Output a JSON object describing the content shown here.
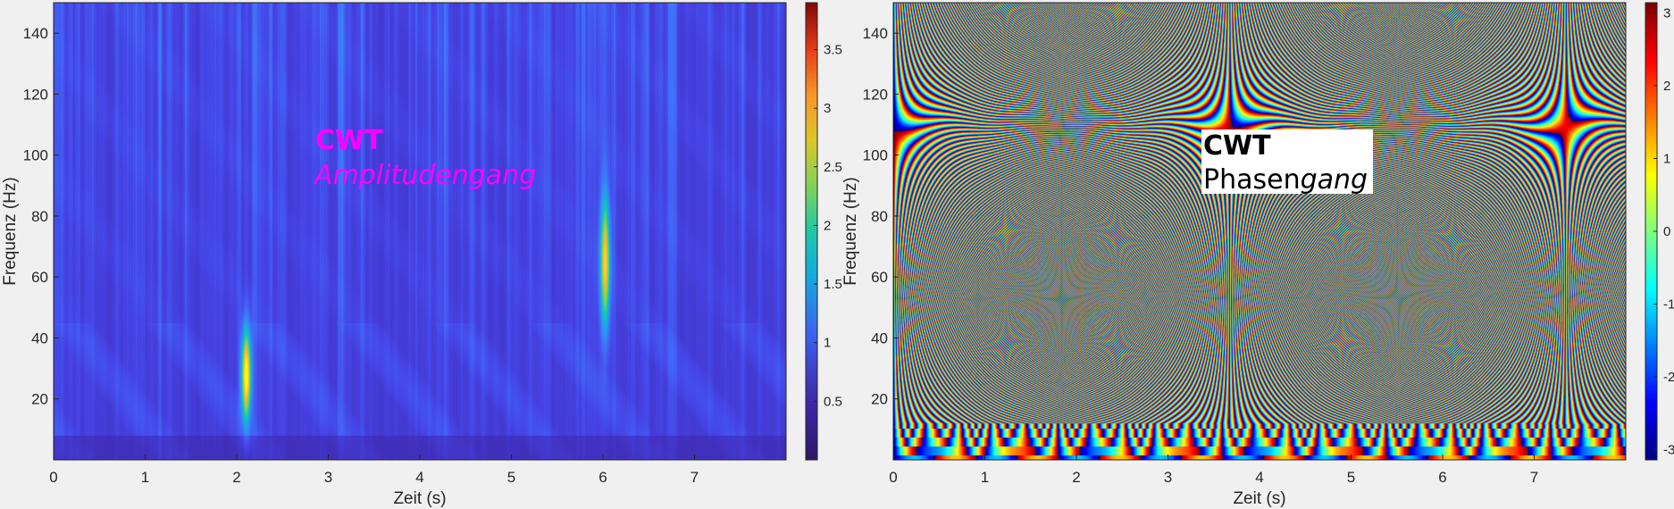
{
  "colors": {
    "background": "#f0f0f0",
    "annotation_amp": "#ff00ff",
    "annotation_phase": "#000000",
    "annotation_box": "#ffffff"
  },
  "chart_data": [
    {
      "type": "heatmap",
      "colormap": "parula",
      "xlabel": "Zeit (s)",
      "ylabel": "Frequenz (Hz)",
      "xlim": [
        0,
        8
      ],
      "ylim": [
        0,
        150
      ],
      "xticks": [
        0,
        1,
        2,
        3,
        4,
        5,
        6,
        7
      ],
      "yticks": [
        20,
        40,
        60,
        80,
        100,
        120,
        140
      ],
      "colorbar": {
        "range": [
          0,
          3.9
        ],
        "ticks": [
          0.5,
          1,
          1.5,
          2,
          2.5,
          3,
          3.5
        ],
        "tick_labels": [
          "0.5",
          "1",
          "1.5",
          "2",
          "2.5",
          "3",
          "3.5"
        ]
      },
      "annotation": {
        "line1": "CWT",
        "line2": "Amplitudengang"
      },
      "features": [
        {
          "time_s": 2.1,
          "freq_hz": 28,
          "amplitude": 3.8,
          "freq_spread_hz": 14
        },
        {
          "time_s": 6.02,
          "freq_hz": 65,
          "amplitude": 3.0,
          "freq_spread_hz": 20
        }
      ],
      "grid": false
    },
    {
      "type": "heatmap",
      "colormap": "jet",
      "xlabel": "Zeit (s)",
      "ylabel": "Frequenz (Hz)",
      "xlim": [
        0,
        8
      ],
      "ylim": [
        0,
        150
      ],
      "xticks": [
        0,
        1,
        2,
        3,
        4,
        5,
        6,
        7
      ],
      "yticks": [
        20,
        40,
        60,
        80,
        100,
        120,
        140
      ],
      "colorbar": {
        "range": [
          -3.14,
          3.14
        ],
        "ticks": [
          -3,
          -2,
          -1,
          0,
          1,
          2,
          3
        ],
        "tick_labels": [
          "-3",
          "-2",
          "-1",
          "0",
          "1",
          "2",
          "3"
        ]
      },
      "annotation": {
        "line1": "CWT",
        "line2_normal": "Phasen",
        "line2_italic": "gang"
      },
      "grid": false
    }
  ]
}
